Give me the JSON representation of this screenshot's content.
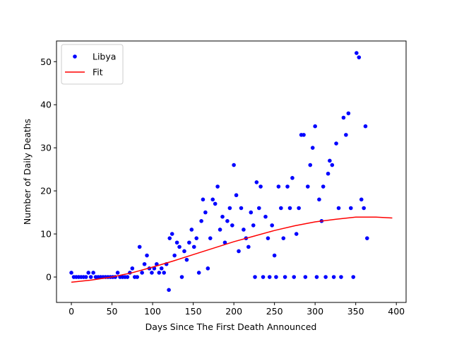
{
  "chart_data": {
    "type": "scatter",
    "xlabel": "Days Since The First Death Announced",
    "ylabel": "Number of Daily Deaths",
    "xlim": [
      -18.3,
      412
    ],
    "ylim": [
      -5.9,
      54.8
    ],
    "xticks": [
      0,
      50,
      100,
      150,
      200,
      250,
      300,
      350,
      400
    ],
    "yticks": [
      0,
      10,
      20,
      30,
      40,
      50
    ],
    "legend": "upper left",
    "series": [
      {
        "name": "Libya",
        "color": "#0000ff",
        "style": "points",
        "x": [
          0,
          3,
          6,
          9,
          12,
          15,
          18,
          21,
          24,
          27,
          30,
          33,
          36,
          39,
          42,
          45,
          48,
          51,
          54,
          57,
          60,
          63,
          66,
          69,
          72,
          75,
          78,
          81,
          84,
          87,
          90,
          93,
          96,
          99,
          102,
          105,
          108,
          111,
          114,
          117,
          120,
          121,
          124,
          127,
          130,
          133,
          136,
          139,
          142,
          145,
          148,
          151,
          154,
          157,
          160,
          162,
          165,
          168,
          171,
          174,
          177,
          180,
          183,
          186,
          189,
          192,
          195,
          198,
          200,
          203,
          206,
          209,
          212,
          215,
          218,
          221,
          224,
          226,
          228,
          231,
          233,
          236,
          239,
          242,
          244,
          247,
          250,
          252,
          255,
          258,
          261,
          263,
          266,
          269,
          272,
          274,
          277,
          280,
          283,
          286,
          288,
          291,
          294,
          297,
          300,
          302,
          305,
          308,
          310,
          313,
          316,
          318,
          321,
          323,
          326,
          329,
          332,
          335,
          338,
          341,
          344,
          347,
          351,
          354,
          357,
          360,
          362,
          364
        ],
        "values": [
          1,
          0,
          0,
          0,
          0,
          0,
          0,
          1,
          0,
          1,
          0,
          0,
          0,
          0,
          0,
          0,
          0,
          0,
          0,
          1,
          0,
          0,
          0,
          0,
          1,
          2,
          0,
          0,
          7,
          1,
          3,
          5,
          2,
          1,
          2,
          3,
          1,
          2,
          1,
          3,
          -3,
          9,
          10,
          5,
          8,
          7,
          0,
          6,
          4,
          8,
          11,
          7,
          9,
          1,
          13,
          18,
          15,
          2,
          9,
          18,
          17,
          21,
          11,
          14,
          8,
          13,
          16,
          12,
          26,
          19,
          6,
          16,
          11,
          9,
          7,
          15,
          12,
          0,
          22,
          16,
          21,
          0,
          14,
          9,
          0,
          12,
          5,
          0,
          21,
          16,
          9,
          0,
          21,
          16,
          23,
          0,
          10,
          16,
          33,
          33,
          0,
          21,
          26,
          30,
          35,
          0,
          18,
          13,
          21,
          0,
          24,
          27,
          26,
          0,
          31,
          16,
          0,
          37,
          33,
          38,
          16,
          0,
          52,
          51,
          18,
          16,
          35,
          9
        ]
      },
      {
        "name": "Fit",
        "color": "#ff0000",
        "style": "line",
        "x": [
          0,
          25,
          50,
          75,
          100,
          125,
          150,
          175,
          200,
          225,
          250,
          275,
          300,
          325,
          350,
          375,
          395
        ],
        "values": [
          -1.2,
          -0.7,
          0.0,
          1.0,
          2.3,
          3.7,
          5.2,
          6.7,
          8.2,
          9.5,
          10.8,
          11.9,
          12.8,
          13.4,
          13.9,
          13.9,
          13.7
        ]
      }
    ]
  }
}
